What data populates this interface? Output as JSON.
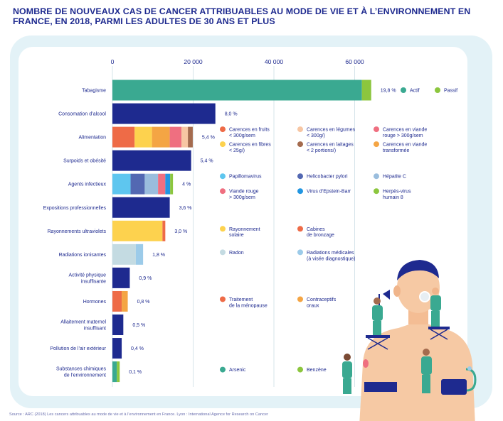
{
  "title": "NOMBRE DE NOUVEAUX CAS DE CANCER ATTRIBUABLES AU MODE DE VIE ET À L’ENVIRONNEMENT EN FRANCE, EN 2018, PARMI LES ADULTES DE 30 ANS ET PLUS",
  "source": "Source : ARC (2018) Les cancers attribuables au mode de vie et à l’environnement en France. Lyon : International Agence for Research on Cancer",
  "chart_data": {
    "type": "bar",
    "orientation": "horizontal",
    "stacked": true,
    "xlim": [
      0,
      68000
    ],
    "xticks": [
      0,
      20000,
      40000,
      60000
    ],
    "xtick_labels": [
      "0",
      "20 000",
      "40 000",
      "60 000"
    ],
    "grid": true,
    "categories": [
      {
        "label": "Tabagisme",
        "pct": "19,8 %",
        "segments": [
          {
            "v": 61800,
            "c": "#3aa991"
          },
          {
            "v": 2300,
            "c": "#8cc63e"
          }
        ],
        "legend": [
          {
            "label": "Actif",
            "c": "#3aa991"
          },
          {
            "label": "Passif",
            "c": "#8cc63e"
          }
        ]
      },
      {
        "label": "Consomation d’alcool",
        "pct": "8,0 %",
        "segments": [
          {
            "v": 25500,
            "c": "#1e2a8f"
          }
        ]
      },
      {
        "label": "Alimentation",
        "pct": "5,4 %",
        "segments": [
          {
            "v": 5500,
            "c": "#ee6b47"
          },
          {
            "v": 4300,
            "c": "#fdd24e"
          },
          {
            "v": 4400,
            "c": "#f4a544"
          },
          {
            "v": 2900,
            "c": "#ef6f80"
          },
          {
            "v": 1600,
            "c": "#f7c6a3"
          },
          {
            "v": 1200,
            "c": "#a46b4e"
          }
        ],
        "legend": [
          {
            "label": "Carences en fruits\n< 300g/sem",
            "c": "#ee6b47"
          },
          {
            "label": "Carences en légumes\n< 300g/)",
            "c": "#f7c6a3"
          },
          {
            "label": "Carences en viande\nrouge > 300g/sem",
            "c": "#ef6f80"
          },
          {
            "label": "Carences en fibres\n< 25g/)",
            "c": "#fdd24e"
          },
          {
            "label": "Carences en laitages\n< 2 portions/)",
            "c": "#a46b4e"
          },
          {
            "label": "Carences en viande\ntransformée",
            "c": "#f4a544"
          }
        ]
      },
      {
        "label": "Surpoids et obésité",
        "pct": "5,4 %",
        "segments": [
          {
            "v": 19500,
            "c": "#1e2a8f"
          }
        ]
      },
      {
        "label": "Agents infectieux",
        "pct": "4 %",
        "segments": [
          {
            "v": 4500,
            "c": "#5ec6ef"
          },
          {
            "v": 3500,
            "c": "#5368b2"
          },
          {
            "v": 3300,
            "c": "#9abddd"
          },
          {
            "v": 1800,
            "c": "#ef6f80"
          },
          {
            "v": 1200,
            "c": "#2296e1"
          },
          {
            "v": 700,
            "c": "#8cc63e"
          }
        ],
        "legend": [
          {
            "label": "Papillomavirus",
            "c": "#5ec6ef"
          },
          {
            "label": "Helicobacter pylori",
            "c": "#5368b2"
          },
          {
            "label": "Hépatite C",
            "c": "#9abddd"
          },
          {
            "label": "Viande rouge\n> 300g/sem",
            "c": "#ef6f80"
          },
          {
            "label": "Virus d’Epstein-Barr",
            "c": "#2296e1"
          },
          {
            "label": "Herpès-virus\nhumain 8",
            "c": "#8cc63e"
          }
        ]
      },
      {
        "label": "Expositions professionnelles",
        "pct": "3,6 %",
        "segments": [
          {
            "v": 14200,
            "c": "#1e2a8f"
          }
        ]
      },
      {
        "label": "Rayonnements ultraviolets",
        "pct": "3,0 %",
        "segments": [
          {
            "v": 12400,
            "c": "#fdd24e"
          },
          {
            "v": 700,
            "c": "#ee6b47"
          }
        ],
        "legend": [
          {
            "label": "Rayonnement\nsolaire",
            "c": "#fdd24e"
          },
          {
            "label": "Cabines\nde bronzage",
            "c": "#ee6b47"
          }
        ]
      },
      {
        "label": "Radiations ionisantes",
        "pct": "1,8 %",
        "segments": [
          {
            "v": 5800,
            "c": "#c4dbe2"
          },
          {
            "v": 1800,
            "c": "#9ccbe9"
          }
        ],
        "legend": [
          {
            "label": "Radon",
            "c": "#c4dbe2"
          },
          {
            "label": "Radiations médicales\n(à visée diagnostique)",
            "c": "#9ccbe9"
          }
        ]
      },
      {
        "label": "Activité physique\ninsuffisante",
        "pct": "0,9 %",
        "segments": [
          {
            "v": 4300,
            "c": "#1e2a8f"
          }
        ]
      },
      {
        "label": "Hormones",
        "pct": "0,8 %",
        "segments": [
          {
            "v": 2300,
            "c": "#ee6b47"
          },
          {
            "v": 1500,
            "c": "#f4a544"
          }
        ],
        "legend": [
          {
            "label": "Traitement\nde la ménopause",
            "c": "#ee6b47"
          },
          {
            "label": "Contraceptifs\noraux",
            "c": "#f4a544"
          }
        ]
      },
      {
        "label": "Allaitement maternel\ninsuffisant",
        "pct": "0,5 %",
        "segments": [
          {
            "v": 2700,
            "c": "#1e2a8f"
          }
        ]
      },
      {
        "label": "Pollution de l’air extérieur",
        "pct": "0,4 %",
        "segments": [
          {
            "v": 2300,
            "c": "#1e2a8f"
          }
        ]
      },
      {
        "label": "Substances chimiques\nde l’environnement",
        "pct": "0,1 %",
        "segments": [
          {
            "v": 1100,
            "c": "#3aa991"
          },
          {
            "v": 700,
            "c": "#8cc63e"
          }
        ],
        "legend": [
          {
            "label": "Arsenic",
            "c": "#3aa991"
          },
          {
            "label": "Benzène",
            "c": "#8cc63e"
          }
        ]
      }
    ]
  },
  "colors": {
    "navy": "#1e2a8f",
    "grid": "#d6e4ea",
    "panel": "#e3f2f7",
    "skin": "#f6c9a4",
    "scrub": "#3aa991"
  }
}
